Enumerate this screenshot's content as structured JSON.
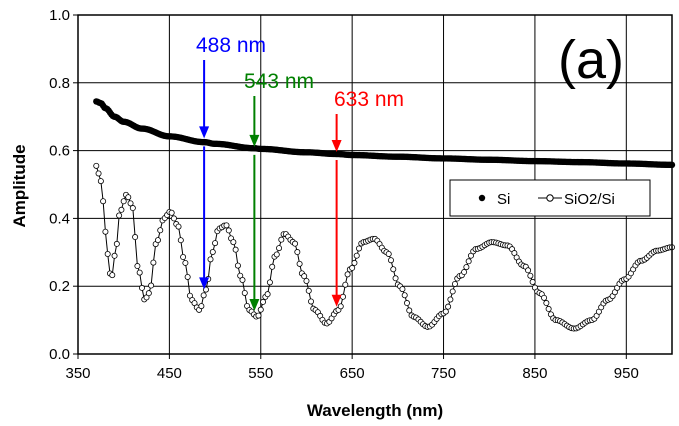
{
  "chart_data": {
    "type": "line",
    "panel_label": "(a)",
    "xlabel": "Wavelength (nm)",
    "ylabel": "Amplitude",
    "xlim": [
      350,
      1000
    ],
    "ylim": [
      0.0,
      1.0
    ],
    "xticks": [
      350,
      450,
      550,
      650,
      750,
      850,
      950
    ],
    "xtick_labels": [
      "350",
      "450",
      "550",
      "650",
      "750",
      "850",
      "950"
    ],
    "yticks": [
      0.0,
      0.2,
      0.4,
      0.6,
      0.8,
      1.0
    ],
    "ytick_labels": [
      "0.0",
      "0.2",
      "0.4",
      "0.6",
      "0.8",
      "1.0"
    ],
    "grid": true,
    "legend_position": "right, middle",
    "series": [
      {
        "name": "Si",
        "marker": "filled-circle",
        "color": "#000000",
        "x": [
          370,
          375,
          380,
          390,
          400,
          420,
          450,
          488,
          500,
          543,
          550,
          600,
          633,
          650,
          700,
          750,
          800,
          850,
          900,
          950,
          1000
        ],
        "y": [
          0.745,
          0.74,
          0.725,
          0.7,
          0.685,
          0.665,
          0.642,
          0.625,
          0.62,
          0.607,
          0.605,
          0.595,
          0.59,
          0.587,
          0.582,
          0.577,
          0.573,
          0.569,
          0.566,
          0.562,
          0.558
        ]
      },
      {
        "name": "SiO2/Si",
        "marker": "open-circle",
        "color": "#000000",
        "x": [
          370,
          375,
          381,
          384,
          387,
          391,
          396,
          403,
          409,
          416,
          423,
          428,
          436,
          444,
          451,
          459,
          467,
          474,
          483,
          490,
          497,
          504,
          512,
          520,
          528,
          537,
          546,
          556,
          566,
          576,
          586,
          597,
          609,
          622,
          635,
          648,
          662,
          674,
          688,
          702,
          717,
          733,
          750,
          768,
          786,
          803,
          820,
          838,
          855,
          873,
          893,
          912,
          930,
          948,
          966,
          984,
          1000
        ],
        "y": [
          0.555,
          0.51,
          0.35,
          0.24,
          0.23,
          0.3,
          0.42,
          0.47,
          0.44,
          0.25,
          0.16,
          0.18,
          0.33,
          0.4,
          0.42,
          0.38,
          0.27,
          0.16,
          0.13,
          0.19,
          0.3,
          0.37,
          0.38,
          0.33,
          0.23,
          0.13,
          0.11,
          0.17,
          0.29,
          0.355,
          0.33,
          0.23,
          0.13,
          0.09,
          0.13,
          0.25,
          0.33,
          0.34,
          0.3,
          0.2,
          0.11,
          0.08,
          0.12,
          0.23,
          0.31,
          0.33,
          0.32,
          0.26,
          0.18,
          0.1,
          0.075,
          0.1,
          0.16,
          0.22,
          0.275,
          0.305,
          0.315
        ]
      }
    ],
    "annotations": [
      {
        "text": "488 nm",
        "x": 488,
        "color": "#0000ff",
        "arrow_top_y": 0.63
      },
      {
        "text": "543 nm",
        "x": 543,
        "color": "#008000",
        "arrow_top_y": 0.605
      },
      {
        "text": "633 nm",
        "x": 633,
        "color": "#ff0000",
        "arrow_top_y": 0.59
      }
    ]
  }
}
